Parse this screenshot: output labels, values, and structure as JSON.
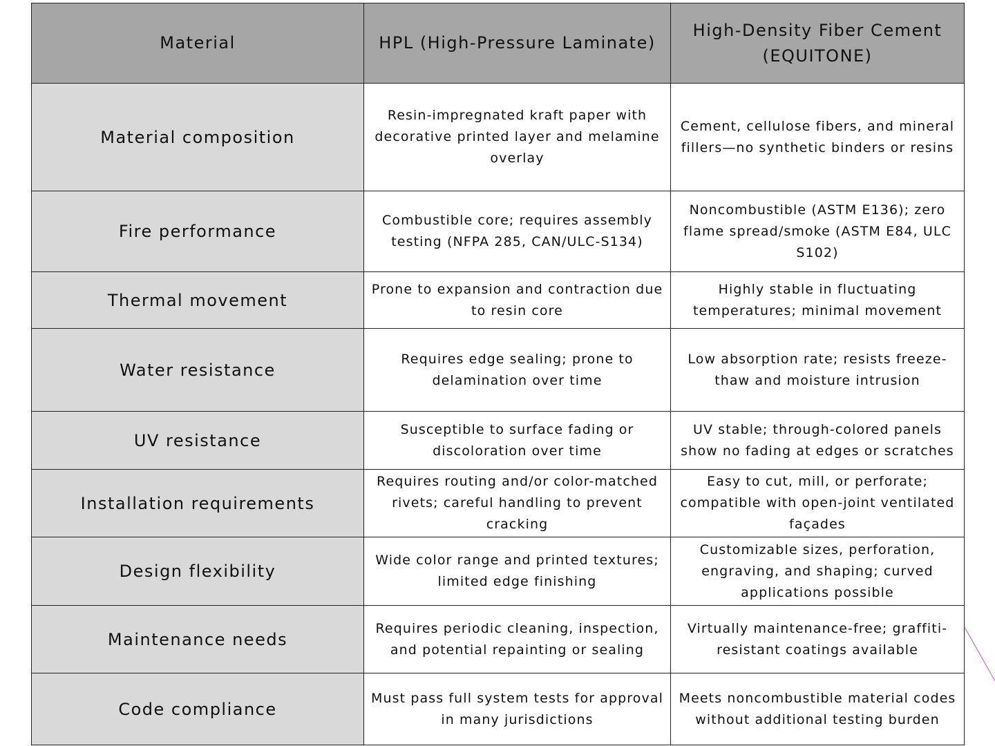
{
  "table": {
    "headers": [
      "Material",
      "HPL (High-Pressure Laminate)",
      "High-Density Fiber Cement (EQUITONE)"
    ],
    "rows": [
      {
        "label": "Material composition",
        "hpl": "Resin-impregnated kraft paper with decorative printed layer and melamine overlay",
        "equitone": "Cement, cellulose fibers, and mineral fillers—no synthetic binders or resins"
      },
      {
        "label": "Fire performance",
        "hpl": "Combustible core; requires assembly testing (NFPA 285, CAN/ULC-S134)",
        "equitone": "Noncombustible (ASTM E136); zero flame spread/smoke (ASTM E84, ULC S102)"
      },
      {
        "label": "Thermal movement",
        "hpl": "Prone to expansion and contraction due to resin core",
        "equitone": "Highly stable in fluctuating temperatures; minimal movement"
      },
      {
        "label": "Water resistance",
        "hpl": "Requires edge sealing; prone to delamination over time",
        "equitone": "Low absorption rate; resists freeze-thaw and moisture intrusion"
      },
      {
        "label": "UV resistance",
        "hpl": "Susceptible to surface fading or discoloration over time",
        "equitone": "UV stable; through-colored panels show no fading at edges or scratches"
      },
      {
        "label": "Installation requirements",
        "hpl": "Requires routing and/or color-matched rivets; careful handling to prevent cracking",
        "equitone": "Easy to cut, mill, or perforate; compatible with open-joint ventilated façades"
      },
      {
        "label": "Design flexibility",
        "hpl": "Wide color range and printed textures; limited edge finishing",
        "equitone": "Customizable sizes, perforation, engraving, and shaping; curved applications possible"
      },
      {
        "label": "Maintenance needs",
        "hpl": "Requires periodic cleaning, inspection, and potential repainting or sealing",
        "equitone": "Virtually maintenance-free; graffiti-resistant coatings available"
      },
      {
        "label": "Code compliance",
        "hpl": "Must pass full system tests for approval in many jurisdictions",
        "equitone": "Meets noncombustible material codes without additional testing burden"
      }
    ]
  },
  "colors": {
    "header_bg": "#a6a6a6",
    "label_bg": "#d9d9d9",
    "cell_bg": "#ffffff",
    "border": "#222222",
    "decoration_line": "#c96fd6"
  }
}
